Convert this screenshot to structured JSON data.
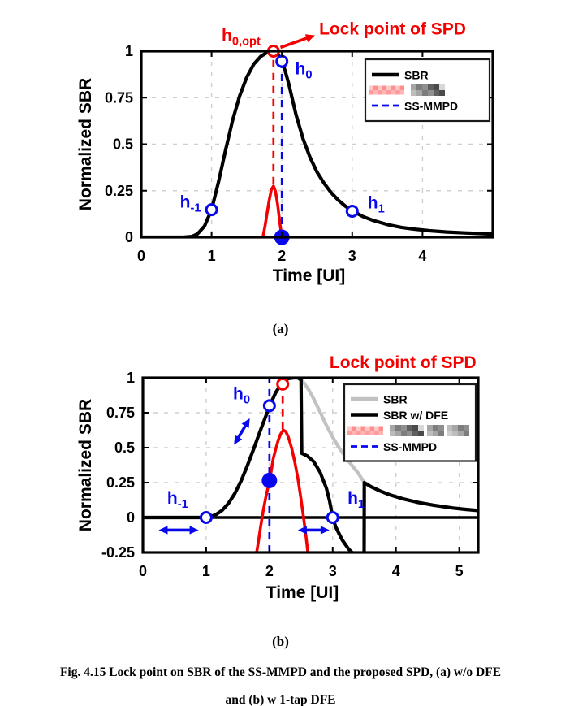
{
  "figure": {
    "sublabel_a": "(a)",
    "sublabel_b": "(b)",
    "caption_line1": "Fig. 4.15 Lock point on SBR of the SS-MMPD and the proposed SPD, (a) w/o DFE",
    "caption_line2": "and (b) w 1-tap DFE"
  },
  "colors": {
    "black": "#000000",
    "red": "#f50000",
    "blue": "#0808ee",
    "gray": "#c2c2c2",
    "grid": "#cfcfcf",
    "pink": "#ffa8a8",
    "legend_border": "#1a1a1a",
    "background": "#ffffff"
  },
  "chart_data": [
    {
      "panel": "a",
      "type": "line",
      "xlabel": "Time [UI]",
      "ylabel": "Normalized SBR",
      "xlim": [
        0,
        5.0
      ],
      "ylim": [
        0,
        1
      ],
      "xticks": [
        0,
        1,
        2,
        3,
        4
      ],
      "xtick_labels": [
        "0",
        "1",
        "2",
        "3",
        "4"
      ],
      "yticks": [
        0,
        0.25,
        0.5,
        0.75,
        1
      ],
      "ytick_labels": [
        "0",
        "0.25",
        "0.5",
        "0.75",
        "1"
      ],
      "grid": true,
      "zero_line": false,
      "legend": [
        {
          "label": "SBR",
          "style": "solid",
          "color": "black"
        },
        {
          "label": "[redacted]",
          "style": "solid",
          "color": "pink",
          "redacted": true,
          "label_blocks": [
            44
          ]
        },
        {
          "label": "SS-MMPD",
          "style": "dashed",
          "color": "blue"
        }
      ],
      "series": [
        {
          "name": "SBR",
          "color": "black",
          "width": 4.2,
          "points": [
            [
              0,
              0
            ],
            [
              0.6,
              0
            ],
            [
              0.72,
              0.004
            ],
            [
              0.8,
              0.018
            ],
            [
              0.9,
              0.06
            ],
            [
              1.0,
              0.148
            ],
            [
              1.1,
              0.3
            ],
            [
              1.2,
              0.47
            ],
            [
              1.3,
              0.63
            ],
            [
              1.4,
              0.76
            ],
            [
              1.5,
              0.86
            ],
            [
              1.6,
              0.93
            ],
            [
              1.7,
              0.972
            ],
            [
              1.8,
              0.995
            ],
            [
              1.88,
              1.0
            ],
            [
              1.95,
              0.98
            ],
            [
              2.0,
              0.945
            ],
            [
              2.05,
              0.89
            ],
            [
              2.1,
              0.82
            ],
            [
              2.2,
              0.66
            ],
            [
              2.3,
              0.53
            ],
            [
              2.4,
              0.43
            ],
            [
              2.5,
              0.35
            ],
            [
              2.6,
              0.29
            ],
            [
              2.7,
              0.24
            ],
            [
              2.8,
              0.2
            ],
            [
              2.9,
              0.168
            ],
            [
              3.0,
              0.142
            ],
            [
              3.15,
              0.112
            ],
            [
              3.3,
              0.09
            ],
            [
              3.5,
              0.068
            ],
            [
              3.7,
              0.053
            ],
            [
              3.9,
              0.043
            ],
            [
              4.1,
              0.035
            ],
            [
              4.35,
              0.028
            ],
            [
              4.6,
              0.023
            ],
            [
              4.8,
              0.02
            ],
            [
              5.0,
              0.017
            ]
          ]
        },
        {
          "name": "SPD pulse",
          "color": "red",
          "width": 3.6,
          "points": [
            [
              1.73,
              0
            ],
            [
              1.76,
              0.06
            ],
            [
              1.79,
              0.13
            ],
            [
              1.82,
              0.2
            ],
            [
              1.85,
              0.255
            ],
            [
              1.88,
              0.275
            ],
            [
              1.91,
              0.245
            ],
            [
              1.94,
              0.175
            ],
            [
              1.97,
              0.08
            ],
            [
              2.0,
              0
            ]
          ]
        }
      ],
      "vlines": [
        {
          "x": 1.88,
          "y1": 0.285,
          "y2": 0.99,
          "color": "red",
          "name": "spd-lock-vline"
        },
        {
          "x": 2.0,
          "y1": 0.0,
          "y2": 0.935,
          "color": "blue",
          "name": "ss-mmpd-lock-vline"
        }
      ],
      "arrows": [
        {
          "x1": 1.98,
          "y1": 1.02,
          "x2": 2.47,
          "y2": 1.085,
          "color": "red",
          "heads": "end",
          "name": "lock-point-arrow"
        }
      ],
      "markers": [
        {
          "x": 1.88,
          "y": 1.0,
          "type": "open",
          "color": "red",
          "name": "spd-lock-point-marker"
        },
        {
          "x": 2.0,
          "y": 0.945,
          "type": "open",
          "color": "blue",
          "name": "h0-marker"
        },
        {
          "x": 2.0,
          "y": 0.0,
          "type": "filled",
          "color": "blue",
          "name": "ss-mmpd-lock-marker"
        },
        {
          "x": 1.0,
          "y": 0.148,
          "type": "open",
          "color": "blue",
          "name": "h-minus-1-marker"
        },
        {
          "x": 3.0,
          "y": 0.14,
          "type": "open",
          "color": "blue",
          "name": "h1-marker"
        }
      ],
      "annotations": [
        {
          "main": "h",
          "sub": "0,opt",
          "x": 1.42,
          "y": 1.055,
          "color": "red",
          "size": 21,
          "anchor": "middle",
          "name": "label-h0-opt"
        },
        {
          "main": "Lock point of SPD",
          "sub": "",
          "x": 2.53,
          "y": 1.09,
          "color": "red",
          "size": 21,
          "anchor": "start",
          "name": "lock-point-of-spd-label"
        },
        {
          "main": "h",
          "sub": "0",
          "x": 2.31,
          "y": 0.875,
          "color": "blue",
          "size": 21,
          "anchor": "middle",
          "name": "label-h0"
        },
        {
          "main": "h",
          "sub": "-1",
          "x": 0.7,
          "y": 0.16,
          "color": "blue",
          "size": 21,
          "anchor": "middle",
          "name": "label-h-minus-1"
        },
        {
          "main": "h",
          "sub": "1",
          "x": 3.34,
          "y": 0.155,
          "color": "blue",
          "size": 21,
          "anchor": "middle",
          "name": "label-h1"
        }
      ]
    },
    {
      "panel": "b",
      "type": "line",
      "xlabel": "Time [UI]",
      "ylabel": "Normalized SBR",
      "xlim": [
        0,
        5.3
      ],
      "ylim": [
        -0.25,
        1
      ],
      "xticks": [
        0,
        1,
        2,
        3,
        4,
        5
      ],
      "xtick_labels": [
        "0",
        "1",
        "2",
        "3",
        "4",
        "5"
      ],
      "yticks": [
        -0.25,
        0,
        0.25,
        0.5,
        0.75,
        1
      ],
      "ytick_labels": [
        "-0.25",
        "0",
        "0.25",
        "0.5",
        "0.75",
        "1"
      ],
      "grid": true,
      "zero_line": true,
      "legend": [
        {
          "label": "SBR",
          "style": "solid",
          "color": "gray"
        },
        {
          "label": "SBR w/ DFE",
          "style": "solid",
          "color": "black"
        },
        {
          "label": "[redacted]",
          "style": "solid",
          "color": "pink",
          "redacted": true,
          "label_blocks": [
            40,
            18,
            28
          ]
        },
        {
          "label": "SS-MMPD",
          "style": "dashed",
          "color": "blue"
        }
      ],
      "series": [
        {
          "name": "SBR",
          "color": "gray",
          "width": 4.2,
          "points": [
            [
              0,
              0
            ],
            [
              0.95,
              0
            ],
            [
              1.05,
              0.004
            ],
            [
              1.15,
              0.02
            ],
            [
              1.25,
              0.05
            ],
            [
              1.35,
              0.1
            ],
            [
              1.45,
              0.17
            ],
            [
              1.55,
              0.26
            ],
            [
              1.65,
              0.37
            ],
            [
              1.75,
              0.49
            ],
            [
              1.85,
              0.615
            ],
            [
              1.95,
              0.735
            ],
            [
              2.0,
              0.79
            ],
            [
              2.05,
              0.845
            ],
            [
              2.1,
              0.895
            ],
            [
              2.2,
              0.965
            ],
            [
              2.3,
              0.995
            ],
            [
              2.38,
              1.0
            ],
            [
              2.45,
              1.0
            ],
            [
              2.5,
              0.99
            ],
            [
              2.55,
              0.96
            ],
            [
              2.62,
              0.915
            ],
            [
              2.7,
              0.85
            ],
            [
              2.8,
              0.755
            ],
            [
              2.9,
              0.66
            ],
            [
              3.0,
              0.575
            ],
            [
              3.1,
              0.5
            ],
            [
              3.2,
              0.435
            ],
            [
              3.3,
              0.375
            ],
            [
              3.4,
              0.32
            ],
            [
              3.45,
              0.285
            ],
            [
              3.5,
              0.25
            ],
            [
              3.6,
              0.222
            ],
            [
              3.75,
              0.19
            ],
            [
              3.9,
              0.163
            ],
            [
              4.1,
              0.135
            ],
            [
              4.35,
              0.108
            ],
            [
              4.6,
              0.088
            ],
            [
              4.9,
              0.068
            ],
            [
              5.1,
              0.058
            ],
            [
              5.3,
              0.05
            ]
          ]
        },
        {
          "name": "SBR w/ DFE",
          "color": "black",
          "width": 4.2,
          "points": [
            [
              0,
              0
            ],
            [
              0.95,
              0
            ],
            [
              1.05,
              0.004
            ],
            [
              1.15,
              0.02
            ],
            [
              1.25,
              0.05
            ],
            [
              1.35,
              0.1
            ],
            [
              1.45,
              0.17
            ],
            [
              1.55,
              0.26
            ],
            [
              1.65,
              0.37
            ],
            [
              1.75,
              0.49
            ],
            [
              1.85,
              0.615
            ],
            [
              1.95,
              0.735
            ],
            [
              2.0,
              0.79
            ],
            [
              2.05,
              0.845
            ],
            [
              2.1,
              0.895
            ],
            [
              2.2,
              0.965
            ],
            [
              2.3,
              0.995
            ],
            [
              2.38,
              1.0
            ],
            [
              2.45,
              1.0
            ],
            [
              2.5,
              0.985
            ],
            [
              2.51,
              0.46
            ],
            [
              2.6,
              0.44
            ],
            [
              2.7,
              0.4
            ],
            [
              2.8,
              0.325
            ],
            [
              2.9,
              0.21
            ],
            [
              2.95,
              0.12
            ],
            [
              3.0,
              0.0
            ],
            [
              3.05,
              -0.07
            ],
            [
              3.15,
              -0.16
            ],
            [
              3.25,
              -0.225
            ],
            [
              3.35,
              -0.27
            ],
            [
              3.45,
              -0.295
            ],
            [
              3.497,
              -0.3
            ],
            [
              3.5,
              0.25
            ],
            [
              3.6,
              0.222
            ],
            [
              3.75,
              0.19
            ],
            [
              3.9,
              0.163
            ],
            [
              4.1,
              0.135
            ],
            [
              4.35,
              0.108
            ],
            [
              4.6,
              0.088
            ],
            [
              4.9,
              0.068
            ],
            [
              5.1,
              0.058
            ],
            [
              5.3,
              0.05
            ]
          ]
        },
        {
          "name": "SPD pulse",
          "color": "red",
          "width": 3.6,
          "points": [
            [
              1.78,
              -0.3
            ],
            [
              1.82,
              -0.19
            ],
            [
              1.86,
              -0.07
            ],
            [
              1.9,
              0.045
            ],
            [
              1.94,
              0.14
            ],
            [
              1.98,
              0.22
            ],
            [
              2.02,
              0.31
            ],
            [
              2.06,
              0.42
            ],
            [
              2.1,
              0.49
            ],
            [
              2.14,
              0.555
            ],
            [
              2.18,
              0.6
            ],
            [
              2.22,
              0.625
            ],
            [
              2.26,
              0.615
            ],
            [
              2.3,
              0.575
            ],
            [
              2.35,
              0.5
            ],
            [
              2.4,
              0.4
            ],
            [
              2.45,
              0.28
            ],
            [
              2.5,
              0.13
            ],
            [
              2.54,
              0.0
            ],
            [
              2.58,
              -0.14
            ],
            [
              2.62,
              -0.3
            ]
          ]
        }
      ],
      "vlines": [
        {
          "x": 2.21,
          "y1": 0.63,
          "y2": 0.925,
          "color": "red",
          "name": "spd-lock-vline"
        },
        {
          "x": 2.0,
          "y1": -0.25,
          "y2": 1.0,
          "color": "blue",
          "name": "ss-mmpd-lock-vline"
        }
      ],
      "arrows": [
        {
          "x1": 0.25,
          "y1": -0.09,
          "x2": 0.88,
          "y2": -0.09,
          "color": "blue",
          "heads": "both",
          "name": "h-minus-1-shift-arrow"
        },
        {
          "x1": 2.45,
          "y1": -0.09,
          "x2": 2.95,
          "y2": -0.09,
          "color": "blue",
          "heads": "both",
          "name": "h1-shift-arrow"
        },
        {
          "x1": 1.44,
          "y1": 0.52,
          "x2": 1.69,
          "y2": 0.71,
          "color": "blue",
          "heads": "both",
          "name": "h0-shift-arrow"
        }
      ],
      "markers": [
        {
          "x": 2.21,
          "y": 0.955,
          "type": "open",
          "color": "red",
          "name": "spd-lock-point-marker"
        },
        {
          "x": 2.0,
          "y": 0.8,
          "type": "open",
          "color": "blue",
          "name": "h0-marker"
        },
        {
          "x": 2.0,
          "y": 0.265,
          "type": "filled",
          "color": "blue",
          "name": "ss-mmpd-lock-marker"
        },
        {
          "x": 1.0,
          "y": 0.0,
          "type": "open",
          "color": "blue",
          "name": "h-minus-1-marker"
        },
        {
          "x": 3.0,
          "y": 0.0,
          "type": "open",
          "color": "blue",
          "name": "h1-marker"
        }
      ],
      "annotations": [
        {
          "main": "Lock point of SPD",
          "sub": "",
          "x": 2.95,
          "y": 1.07,
          "color": "red",
          "size": 21,
          "anchor": "start",
          "name": "lock-point-of-spd-label"
        },
        {
          "main": "h",
          "sub": "0",
          "x": 1.56,
          "y": 0.845,
          "color": "blue",
          "size": 21,
          "anchor": "middle",
          "name": "label-h0"
        },
        {
          "main": "h",
          "sub": "-1",
          "x": 0.55,
          "y": 0.1,
          "color": "blue",
          "size": 21,
          "anchor": "middle",
          "name": "label-h-minus-1"
        },
        {
          "main": "h",
          "sub": "1",
          "x": 3.37,
          "y": 0.1,
          "color": "blue",
          "size": 21,
          "anchor": "middle",
          "name": "label-h1"
        }
      ]
    }
  ]
}
